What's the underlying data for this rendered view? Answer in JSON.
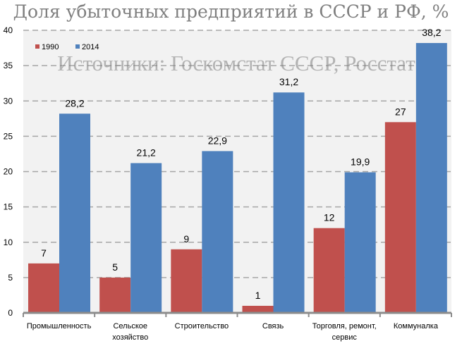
{
  "chart_data": {
    "type": "bar",
    "title": "Доля убыточных предприятий в СССР и РФ, %",
    "categories": [
      [
        "Промышленность"
      ],
      [
        "Сельское",
        "хозяйство"
      ],
      [
        "Строительство"
      ],
      [
        "Связь"
      ],
      [
        "Торговля, ремонт,",
        "сервис"
      ],
      [
        "Коммуналка"
      ]
    ],
    "series": [
      {
        "name": "1990",
        "color": "#c0504d",
        "values": [
          7,
          5,
          9,
          1,
          12,
          27
        ],
        "labels": [
          "7",
          "5",
          "9",
          "1",
          "12",
          "27"
        ]
      },
      {
        "name": "2014",
        "color": "#4f81bd",
        "values": [
          28.2,
          21.2,
          22.9,
          31.2,
          19.9,
          38.2
        ],
        "labels": [
          "28,2",
          "21,2",
          "22,9",
          "31,2",
          "19,9",
          "38,2"
        ]
      }
    ],
    "ylim": [
      0,
      40
    ],
    "yticks": [
      0,
      5,
      10,
      15,
      20,
      25,
      30,
      35,
      40
    ],
    "grid": true,
    "legend": "top-left",
    "annotation": "Источники: Госкомстат СССР, Росстат",
    "xlabel": "",
    "ylabel": ""
  }
}
